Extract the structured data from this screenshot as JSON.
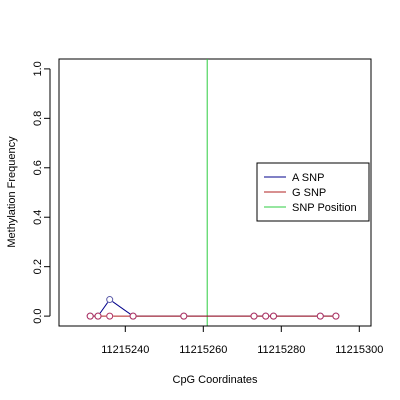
{
  "chart_data": {
    "type": "line",
    "xlabel": "CpG Coordinates",
    "ylabel": "Methylation Frequency",
    "xlim": [
      11215223,
      11215303
    ],
    "ylim": [
      -0.04,
      1.04
    ],
    "x_ticks": [
      11215240,
      11215260,
      11215280,
      11215300
    ],
    "x_tick_labels": [
      "11215240",
      "11215260",
      "11215280",
      "11215300"
    ],
    "y_ticks": [
      0.0,
      0.2,
      0.4,
      0.6,
      0.8,
      1.0
    ],
    "y_tick_labels": [
      "0.0",
      "0.2",
      "0.4",
      "0.6",
      "0.8",
      "1.0"
    ],
    "grid": false,
    "legend_position": "right",
    "series": [
      {
        "name": "A SNP",
        "color": "#00008b",
        "x": [
          11215231,
          11215233,
          11215236,
          11215242,
          11215255,
          11215273,
          11215276,
          11215278,
          11215290,
          11215294
        ],
        "values": [
          0.0,
          0.0,
          0.067,
          0.0,
          0.0,
          0.0,
          0.0,
          0.0,
          0.0,
          0.0
        ]
      },
      {
        "name": "G SNP",
        "color": "#b22222",
        "x": [
          11215231,
          11215233,
          11215236,
          11215242,
          11215255,
          11215273,
          11215276,
          11215278,
          11215290,
          11215294
        ],
        "values": [
          0.0,
          0.0,
          0.0,
          0.0,
          0.0,
          0.0,
          0.0,
          0.0,
          0.0,
          0.0
        ]
      }
    ],
    "snp_position": {
      "name": "SNP Position",
      "x": 11215261,
      "color": "#2ecc40"
    },
    "marker_colors": {
      "a": "#5a5aa8",
      "g": "#b03060"
    }
  }
}
